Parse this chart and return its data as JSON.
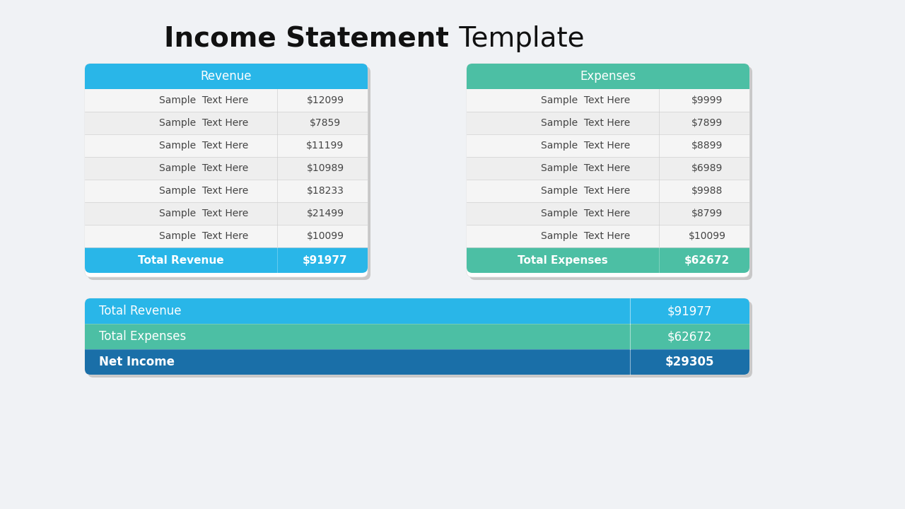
{
  "title_bold": "Income Statement",
  "title_regular": " Template",
  "title_fontsize": 28,
  "background_color": "#f0f2f5",
  "revenue_header": "Revenue",
  "revenue_header_color": "#29b6e8",
  "revenue_rows": [
    [
      "Sample  Text Here",
      "$12099"
    ],
    [
      "Sample  Text Here",
      "$7859"
    ],
    [
      "Sample  Text Here",
      "$11199"
    ],
    [
      "Sample  Text Here",
      "$10989"
    ],
    [
      "Sample  Text Here",
      "$18233"
    ],
    [
      "Sample  Text Here",
      "$21499"
    ],
    [
      "Sample  Text Here",
      "$10099"
    ]
  ],
  "revenue_total_label": "Total Revenue",
  "revenue_total_value": "$91977",
  "revenue_total_color": "#29b6e8",
  "expenses_header": "Expenses",
  "expenses_header_color": "#4cbfa4",
  "expenses_rows": [
    [
      "Sample  Text Here",
      "$9999"
    ],
    [
      "Sample  Text Here",
      "$7899"
    ],
    [
      "Sample  Text Here",
      "$8899"
    ],
    [
      "Sample  Text Here",
      "$6989"
    ],
    [
      "Sample  Text Here",
      "$9988"
    ],
    [
      "Sample  Text Here",
      "$8799"
    ],
    [
      "Sample  Text Here",
      "$10099"
    ]
  ],
  "expenses_total_label": "Total Expenses",
  "expenses_total_value": "$62672",
  "expenses_total_color": "#4cbfa4",
  "summary_rows": [
    {
      "label": "Total Revenue",
      "value": "$91977",
      "bg": "#29b6e8",
      "text_color": "#ffffff",
      "bold": false
    },
    {
      "label": "Total Expenses",
      "value": "$62672",
      "bg": "#4cbfa4",
      "text_color": "#ffffff",
      "bold": false
    },
    {
      "label": "Net Income",
      "value": "$29305",
      "bg": "#1a6fa8",
      "text_color": "#ffffff",
      "bold": true
    }
  ],
  "row_colors": [
    "#f5f5f5",
    "#eeeeee"
  ],
  "row_text_color": "#444444",
  "total_text_color": "#ffffff",
  "card_bg": "#ffffff",
  "card_shadow": "#cccccc"
}
